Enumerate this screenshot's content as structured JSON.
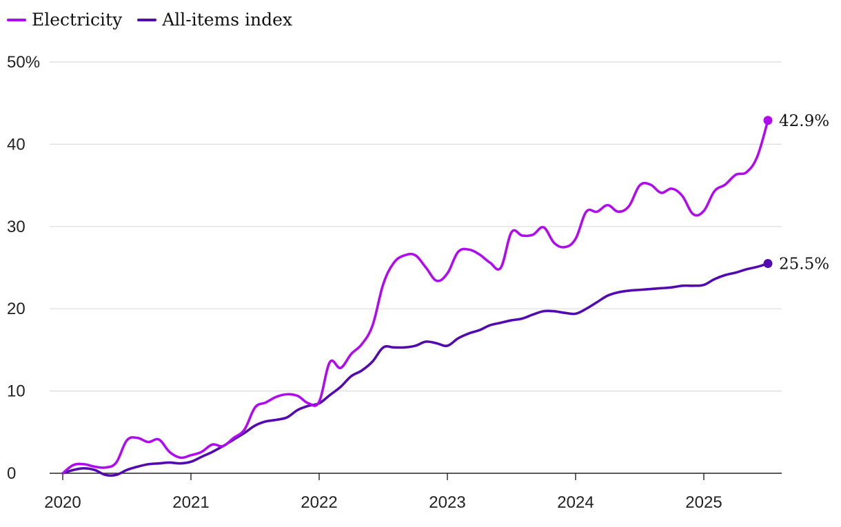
{
  "chart_data": {
    "type": "line",
    "title": "",
    "xlabel": "",
    "ylabel": "",
    "xlim": [
      2020.0,
      2025.6
    ],
    "ylim": [
      0,
      50
    ],
    "x_ticks": [
      2020,
      2021,
      2022,
      2023,
      2024,
      2025
    ],
    "x_tick_labels": [
      "2020",
      "2021",
      "2022",
      "2023",
      "2024",
      "2025"
    ],
    "y_ticks": [
      0,
      10,
      20,
      30,
      40,
      50
    ],
    "y_tick_labels": [
      "0",
      "10",
      "20",
      "30",
      "40",
      "50%"
    ],
    "grid": "horizontal",
    "legend": "top-left",
    "series": [
      {
        "name": "Electricity",
        "color": "#b00af0",
        "end_label": "42.9%",
        "x": [
          2020.0,
          2020.083,
          2020.167,
          2020.25,
          2020.333,
          2020.417,
          2020.5,
          2020.583,
          2020.667,
          2020.75,
          2020.833,
          2020.917,
          2021.0,
          2021.083,
          2021.167,
          2021.25,
          2021.333,
          2021.417,
          2021.5,
          2021.583,
          2021.667,
          2021.75,
          2021.833,
          2021.917,
          2022.0,
          2022.083,
          2022.167,
          2022.25,
          2022.333,
          2022.417,
          2022.5,
          2022.583,
          2022.667,
          2022.75,
          2022.833,
          2022.917,
          2023.0,
          2023.083,
          2023.167,
          2023.25,
          2023.333,
          2023.417,
          2023.5,
          2023.583,
          2023.667,
          2023.75,
          2023.833,
          2023.917,
          2024.0,
          2024.083,
          2024.167,
          2024.25,
          2024.333,
          2024.417,
          2024.5,
          2024.583,
          2024.667,
          2024.75,
          2024.833,
          2024.917,
          2025.0,
          2025.083,
          2025.167,
          2025.25,
          2025.333,
          2025.417,
          2025.5
        ],
        "values": [
          0.0,
          1.0,
          1.1,
          0.8,
          0.7,
          1.3,
          4.0,
          4.3,
          3.8,
          4.1,
          2.6,
          1.9,
          2.2,
          2.6,
          3.5,
          3.3,
          4.3,
          5.3,
          8.0,
          8.6,
          9.3,
          9.6,
          9.4,
          8.5,
          8.7,
          13.5,
          12.8,
          14.5,
          15.7,
          18.0,
          23.0,
          25.6,
          26.5,
          26.5,
          25.0,
          23.4,
          24.3,
          26.9,
          27.2,
          26.6,
          25.6,
          25.0,
          29.3,
          28.9,
          29.0,
          29.9,
          28.0,
          27.5,
          28.5,
          31.8,
          31.8,
          32.6,
          31.8,
          32.5,
          35.0,
          35.1,
          34.1,
          34.6,
          33.7,
          31.5,
          31.9,
          34.3,
          35.1,
          36.3,
          36.6,
          38.5,
          42.9
        ]
      },
      {
        "name": "All-items index",
        "color": "#5209b0",
        "end_label": "25.5%",
        "x": [
          2020.0,
          2020.083,
          2020.167,
          2020.25,
          2020.333,
          2020.417,
          2020.5,
          2020.583,
          2020.667,
          2020.75,
          2020.833,
          2020.917,
          2021.0,
          2021.083,
          2021.167,
          2021.25,
          2021.333,
          2021.417,
          2021.5,
          2021.583,
          2021.667,
          2021.75,
          2021.833,
          2021.917,
          2022.0,
          2022.083,
          2022.167,
          2022.25,
          2022.333,
          2022.417,
          2022.5,
          2022.583,
          2022.667,
          2022.75,
          2022.833,
          2022.917,
          2023.0,
          2023.083,
          2023.167,
          2023.25,
          2023.333,
          2023.417,
          2023.5,
          2023.583,
          2023.667,
          2023.75,
          2023.833,
          2023.917,
          2024.0,
          2024.083,
          2024.167,
          2024.25,
          2024.333,
          2024.417,
          2024.5,
          2024.583,
          2024.667,
          2024.75,
          2024.833,
          2024.917,
          2025.0,
          2025.083,
          2025.167,
          2025.25,
          2025.333,
          2025.417,
          2025.5
        ],
        "values": [
          0.0,
          0.4,
          0.6,
          0.4,
          -0.2,
          -0.2,
          0.4,
          0.8,
          1.1,
          1.2,
          1.3,
          1.2,
          1.4,
          2.0,
          2.6,
          3.3,
          4.1,
          4.9,
          5.8,
          6.3,
          6.5,
          6.8,
          7.7,
          8.2,
          8.5,
          9.5,
          10.5,
          11.8,
          12.5,
          13.6,
          15.3,
          15.3,
          15.3,
          15.5,
          16.0,
          15.8,
          15.5,
          16.4,
          17.0,
          17.4,
          18.0,
          18.3,
          18.6,
          18.8,
          19.3,
          19.7,
          19.7,
          19.5,
          19.4,
          20.0,
          20.8,
          21.6,
          22.0,
          22.2,
          22.3,
          22.4,
          22.5,
          22.6,
          22.8,
          22.8,
          22.9,
          23.6,
          24.1,
          24.4,
          24.8,
          25.1,
          25.5
        ]
      }
    ]
  }
}
